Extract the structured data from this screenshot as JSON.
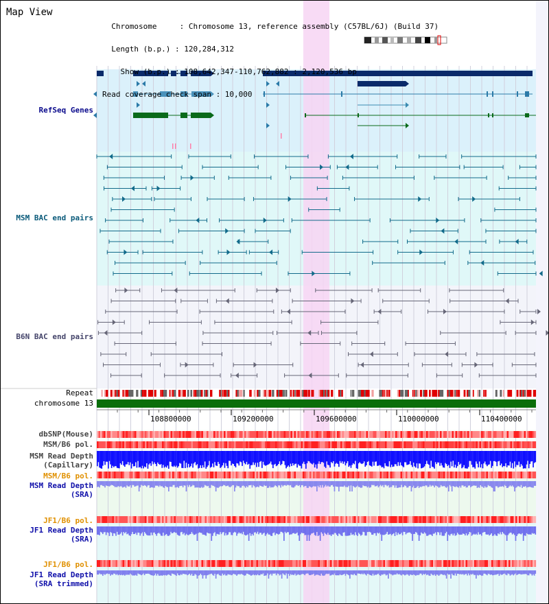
{
  "header": {
    "title": "Map View",
    "info_lines": [
      "  Chromosome     : Chromosome 13, reference assembly (C57BL/6J) (Build 37)",
      "  Length (b.p.) : 120,284,312",
      "    Show (b.p.) : 108,642,347-110,762,882 : 2,120,536 bp",
      "Read coverage check span : 10,000"
    ]
  },
  "tracks": {
    "refseq": {
      "label": "RefSeq Genes",
      "color": "#0a0a8c"
    },
    "msm_bac": {
      "label": "MSM BAC end pairs",
      "color": "#0a5a7a"
    },
    "b6n_bac": {
      "label": "B6N BAC end pairs",
      "color": "#44446a"
    },
    "repeat": {
      "label": "Repeat"
    },
    "chromosome": {
      "label": "chromosome 13"
    },
    "dbsnp": {
      "label": "dbSNP(Mouse)"
    },
    "msm_b6_pol_1": {
      "label": "MSM/B6 pol."
    },
    "msm_depth_cap": {
      "label": "MSM Read Depth\n(Capillary)"
    },
    "msm_b6_pol_2": {
      "label": "MSM/B6 pol."
    },
    "msm_depth_sra": {
      "label": "MSM Read Depth\n(SRA)"
    },
    "jf1_b6_pol_1": {
      "label": "JF1/B6 pol."
    },
    "jf1_depth_sra": {
      "label": "JF1 Read Depth\n(SRA)"
    },
    "jf1_b6_pol_2": {
      "label": "JF1/B6 pol."
    },
    "jf1_depth_trim": {
      "label": "JF1 Read Depth\n(SRA trimmed)"
    }
  },
  "axis": {
    "ticks": [
      "108800000",
      "109200000",
      "109600000",
      "110000000",
      "110400000"
    ]
  },
  "colors": {
    "refseq_bg": "#dbf1fb",
    "msm_bg": "#e0f8f8",
    "b6n_bg": "#f3f4fa",
    "chromosome": "#0a6e0a",
    "highlight": "#f7d5f3",
    "label_orange": "#e09000",
    "label_blue": "#1010aa"
  }
}
